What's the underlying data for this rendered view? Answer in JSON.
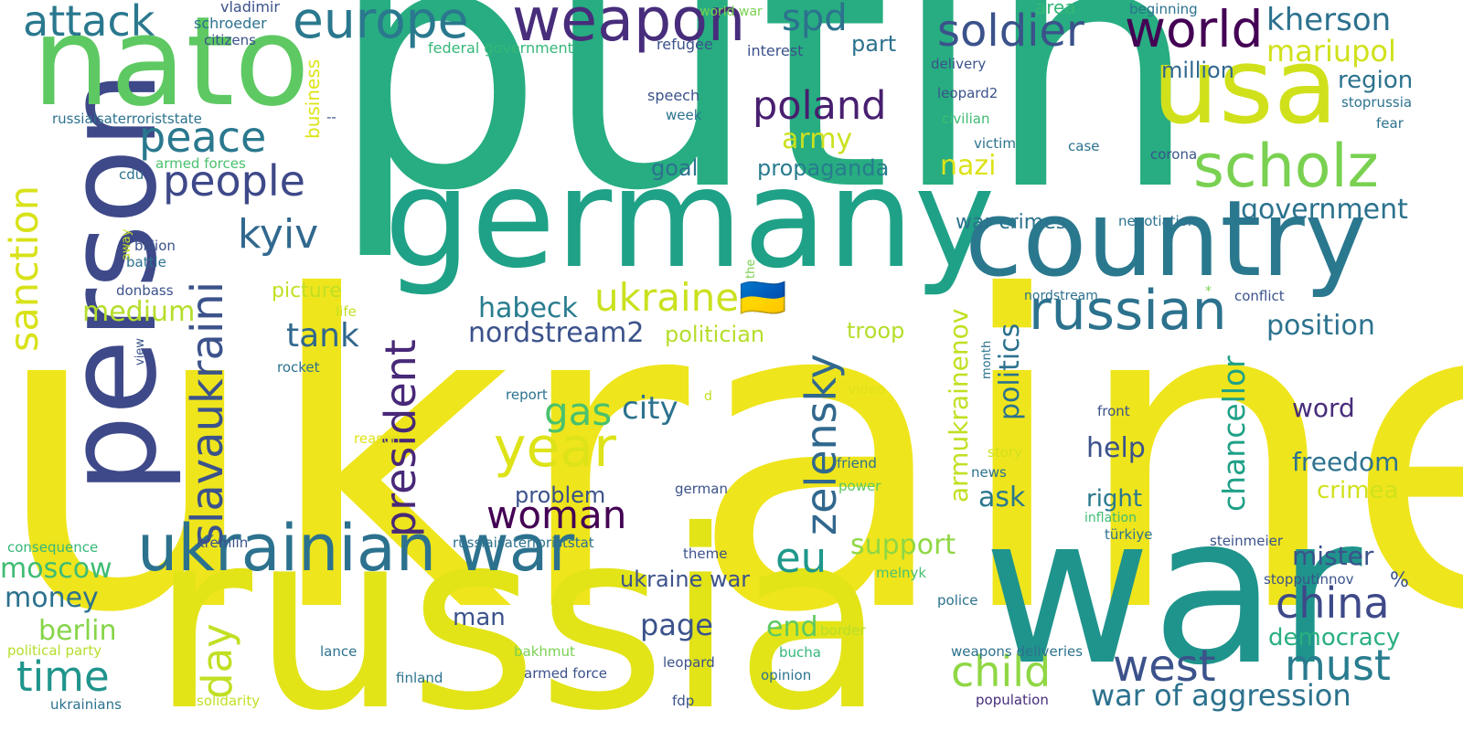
{
  "background": "#ffffff",
  "words": [
    {
      "text": "ukraine",
      "color": "#efe51c"
    },
    {
      "text": "putin",
      "color": "#27ad81"
    },
    {
      "text": "russia",
      "color": "#e2e418"
    },
    {
      "text": "war",
      "color": "#1f948c"
    },
    {
      "text": "germany",
      "color": "#1fa187"
    },
    {
      "text": "person",
      "color": "#3e4989"
    },
    {
      "text": "nato",
      "color": "#5ec962"
    },
    {
      "text": "country",
      "color": "#2a788e"
    },
    {
      "text": "usa",
      "color": "#d0e11c"
    },
    {
      "text": "ukrainian war",
      "color": "#2c728e"
    },
    {
      "text": "weapon",
      "color": "#472d7b"
    },
    {
      "text": "europe",
      "color": "#2a788e"
    },
    {
      "text": "scholz",
      "color": "#7ad151"
    },
    {
      "text": "russian",
      "color": "#2c728e"
    },
    {
      "text": "year",
      "color": "#dde318"
    },
    {
      "text": "world",
      "color": "#440154"
    },
    {
      "text": "soldier",
      "color": "#3b528b"
    },
    {
      "text": "slavaukraini",
      "color": "#3b528b"
    },
    {
      "text": "zelensky",
      "color": "#31688e"
    },
    {
      "text": "attack",
      "color": "#2a788e"
    },
    {
      "text": "peace",
      "color": "#2a788e"
    },
    {
      "text": "people",
      "color": "#3e4989"
    },
    {
      "text": "president",
      "color": "#482878"
    },
    {
      "text": "sanction",
      "color": "#d8e219"
    },
    {
      "text": "poland",
      "color": "#481f70"
    },
    {
      "text": "west",
      "color": "#3b528b"
    },
    {
      "text": "child",
      "color": "#8fd744"
    },
    {
      "text": "china",
      "color": "#3e4989"
    },
    {
      "text": "woman",
      "color": "#440154"
    },
    {
      "text": "spd",
      "color": "#2c728e"
    },
    {
      "text": "kherson",
      "color": "#2c728e"
    },
    {
      "text": "must",
      "color": "#287c8e"
    },
    {
      "text": "eu",
      "color": "#1f988b"
    },
    {
      "text": "day",
      "color": "#c2df23"
    },
    {
      "text": "time",
      "color": "#1f948c"
    },
    {
      "text": "kyiv",
      "color": "#31688e"
    },
    {
      "text": "ukraine🇺🇦",
      "color": "#cae11f"
    },
    {
      "text": "gas",
      "color": "#4ac16d"
    },
    {
      "text": "city",
      "color": "#2c728e"
    },
    {
      "text": "tank",
      "color": "#31688e"
    },
    {
      "text": "government",
      "color": "#2c728e"
    },
    {
      "text": "chancellor",
      "color": "#1fa187"
    },
    {
      "text": "war of aggression",
      "color": "#2c728e"
    },
    {
      "text": "politics",
      "color": "#2c728e"
    },
    {
      "text": "page",
      "color": "#3b528b"
    },
    {
      "text": "position",
      "color": "#2c728e"
    },
    {
      "text": "mariupol",
      "color": "#d0e11c"
    },
    {
      "text": "nordstream2",
      "color": "#3b528b"
    },
    {
      "text": "habeck",
      "color": "#287c8e"
    },
    {
      "text": "moscow",
      "color": "#3fbc73"
    },
    {
      "text": "berlin",
      "color": "#86d549"
    },
    {
      "text": "money",
      "color": "#2c728e"
    },
    {
      "text": "support",
      "color": "#8fd744"
    },
    {
      "text": "end",
      "color": "#5ec962"
    },
    {
      "text": "army",
      "color": "#cae11f"
    },
    {
      "text": "nazi",
      "color": "#dde318"
    },
    {
      "text": "armukrainenov",
      "color": "#c2df23"
    },
    {
      "text": "medium",
      "color": "#b5de2b"
    },
    {
      "text": "help",
      "color": "#3b528b"
    },
    {
      "text": "word",
      "color": "#472d7b"
    },
    {
      "text": "freedom",
      "color": "#2c728e"
    },
    {
      "text": "mister",
      "color": "#3b528b"
    },
    {
      "text": "ask",
      "color": "#2a788e"
    },
    {
      "text": "propaganda",
      "color": "#287c8e"
    },
    {
      "text": "democracy",
      "color": "#29af7f"
    },
    {
      "text": "million",
      "color": "#31688e"
    },
    {
      "text": "region",
      "color": "#2c728e"
    },
    {
      "text": "problem",
      "color": "#3b528b"
    },
    {
      "text": "right",
      "color": "#2a788e"
    },
    {
      "text": "crimea",
      "color": "#d0e11c"
    },
    {
      "text": "ukraine war",
      "color": "#3b528b"
    },
    {
      "text": "man",
      "color": "#3b528b"
    },
    {
      "text": "goal",
      "color": "#2c728e"
    },
    {
      "text": "part",
      "color": "#2c728e"
    },
    {
      "text": "picture",
      "color": "#c2df23"
    },
    {
      "text": "politician",
      "color": "#b5de2b"
    },
    {
      "text": "troop",
      "color": "#b5de2b"
    },
    {
      "text": "war crimes",
      "color": "#2c728e"
    },
    {
      "text": "business",
      "color": "#dde318"
    },
    {
      "text": "area",
      "color": "#35b779"
    },
    {
      "text": "%",
      "color": "#3b528b"
    },
    {
      "text": "vladimir",
      "color": "#3b528b"
    },
    {
      "text": "schroeder",
      "color": "#2c728e"
    },
    {
      "text": "citizens",
      "color": "#3b528b"
    },
    {
      "text": "world war",
      "color": "#7ad151"
    },
    {
      "text": "federal government",
      "color": "#35b779"
    },
    {
      "text": "refugee",
      "color": "#3b528b"
    },
    {
      "text": "interest",
      "color": "#3b528b"
    },
    {
      "text": "beginning",
      "color": "#2c728e"
    },
    {
      "text": "delivery",
      "color": "#3b528b"
    },
    {
      "text": "leopard2",
      "color": "#3b528b"
    },
    {
      "text": "civilian",
      "color": "#3fbc73"
    },
    {
      "text": "victim",
      "color": "#2c728e"
    },
    {
      "text": "case",
      "color": "#2c728e"
    },
    {
      "text": "corona",
      "color": "#3b528b"
    },
    {
      "text": "negotiation",
      "color": "#2c728e"
    },
    {
      "text": "speech",
      "color": "#3b528b"
    },
    {
      "text": "week",
      "color": "#2c728e"
    },
    {
      "text": "stoprussia",
      "color": "#2c728e"
    },
    {
      "text": "fear",
      "color": "#2c728e"
    },
    {
      "text": "russiaisaterroriststate",
      "color": "#2c728e"
    },
    {
      "text": "--",
      "color": "#3b528b"
    },
    {
      "text": "cdu",
      "color": "#2c728e"
    },
    {
      "text": "armed forces",
      "color": "#4ac16d"
    },
    {
      "text": "away",
      "color": "#c2df23"
    },
    {
      "text": "billion",
      "color": "#3b528b"
    },
    {
      "text": "battle",
      "color": "#2c728e"
    },
    {
      "text": "the",
      "color": "#7ad151"
    },
    {
      "text": "donbass",
      "color": "#3b528b"
    },
    {
      "text": "nordstream",
      "color": "#2c728e"
    },
    {
      "text": "*",
      "color": "#7ad151"
    },
    {
      "text": "conflict",
      "color": "#3b528b"
    },
    {
      "text": "life",
      "color": "#c2df23"
    },
    {
      "text": "view",
      "color": "#3b528b"
    },
    {
      "text": "rocket",
      "color": "#2c728e"
    },
    {
      "text": "report",
      "color": "#2c728e"
    },
    {
      "text": "d",
      "color": "#c2df23"
    },
    {
      "text": "video",
      "color": "#dde318"
    },
    {
      "text": "month",
      "color": "#2c728e"
    },
    {
      "text": "front",
      "color": "#3b528b"
    },
    {
      "text": "reason",
      "color": "#dde318"
    },
    {
      "text": "story",
      "color": "#d0e11c"
    },
    {
      "text": "news",
      "color": "#2c728e"
    },
    {
      "text": "friend",
      "color": "#2c728e"
    },
    {
      "text": "power",
      "color": "#5ec962"
    },
    {
      "text": "german",
      "color": "#3b528b"
    },
    {
      "text": "inflation",
      "color": "#3fbc73"
    },
    {
      "text": "türkiye",
      "color": "#2c728e"
    },
    {
      "text": "steinmeier",
      "color": "#3b528b"
    },
    {
      "text": "stopputinnov",
      "color": "#3b528b"
    },
    {
      "text": "kremlin",
      "color": "#3b528b"
    },
    {
      "text": "russiaisaterroriststat",
      "color": "#2c728e"
    },
    {
      "text": "theme",
      "color": "#3b528b"
    },
    {
      "text": "consequence",
      "color": "#35b779"
    },
    {
      "text": "melnyk",
      "color": "#4ac16d"
    },
    {
      "text": "police",
      "color": "#2c728e"
    },
    {
      "text": "political party",
      "color": "#b5de2b"
    },
    {
      "text": "lance",
      "color": "#2c728e"
    },
    {
      "text": "bakhmut",
      "color": "#7ad151"
    },
    {
      "text": "border",
      "color": "#b5de2b"
    },
    {
      "text": "bucha",
      "color": "#35b779"
    },
    {
      "text": "weapons deliveries",
      "color": "#2c728e"
    },
    {
      "text": "leopard",
      "color": "#3b528b"
    },
    {
      "text": "opinion",
      "color": "#2c728e"
    },
    {
      "text": "finland",
      "color": "#2c728e"
    },
    {
      "text": "armed force",
      "color": "#3b528b"
    },
    {
      "text": "fdp",
      "color": "#3b528b"
    },
    {
      "text": "population",
      "color": "#472d7b"
    },
    {
      "text": "ukrainians",
      "color": "#2c728e"
    },
    {
      "text": "solidarity",
      "color": "#c2df23"
    }
  ]
}
